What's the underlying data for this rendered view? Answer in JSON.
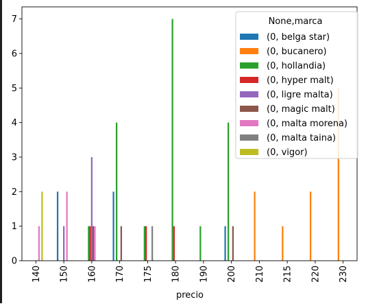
{
  "chart_data": {
    "type": "bar",
    "xlabel": "precio",
    "ylabel": "",
    "ylim": [
      0,
      7.35
    ],
    "yticks": [
      0,
      1,
      2,
      3,
      4,
      5,
      6,
      7
    ],
    "legend_title": "None,marca",
    "legend_position": "upper right",
    "grid": false,
    "categories": [
      "140",
      "150",
      "160",
      "170",
      "175",
      "180",
      "190",
      "200",
      "210",
      "215",
      "220",
      "230"
    ],
    "series": [
      {
        "name": "(0, belga star)",
        "color": "#1f77b4",
        "values": [
          0,
          2,
          0,
          2,
          0,
          0,
          0,
          1,
          0,
          0,
          0,
          0
        ]
      },
      {
        "name": "(0, bucanero)",
        "color": "#ff7f0e",
        "values": [
          0,
          0,
          0,
          0,
          0,
          0,
          0,
          0,
          2,
          1,
          2,
          5
        ]
      },
      {
        "name": "(0, hollandia)",
        "color": "#2ca02c",
        "values": [
          0,
          0,
          1,
          4,
          1,
          7,
          1,
          4,
          0,
          0,
          0,
          0
        ]
      },
      {
        "name": "(0, hyper malt)",
        "color": "#d62728",
        "values": [
          0,
          0,
          1,
          0,
          1,
          1,
          0,
          0,
          0,
          0,
          0,
          0
        ]
      },
      {
        "name": "(0, ligre malta)",
        "color": "#9467bd",
        "values": [
          0,
          1,
          3,
          0,
          0,
          0,
          0,
          0,
          0,
          0,
          0,
          0
        ]
      },
      {
        "name": "(0, magic malt)",
        "color": "#8c564b",
        "values": [
          0,
          0,
          1,
          1,
          0,
          0,
          0,
          1,
          0,
          0,
          0,
          0
        ]
      },
      {
        "name": "(0, malta morena)",
        "color": "#e377c2",
        "values": [
          1,
          2,
          1,
          0,
          0,
          0,
          0,
          0,
          0,
          0,
          0,
          0
        ]
      },
      {
        "name": "(0, malta taina)",
        "color": "#7f7f7f",
        "values": [
          0,
          0,
          0,
          0,
          1,
          0,
          0,
          0,
          0,
          0,
          0,
          0
        ]
      },
      {
        "name": "(0, vigor)",
        "color": "#bcbd22",
        "values": [
          2,
          0,
          0,
          0,
          0,
          0,
          0,
          0,
          0,
          0,
          0,
          0
        ]
      }
    ]
  }
}
